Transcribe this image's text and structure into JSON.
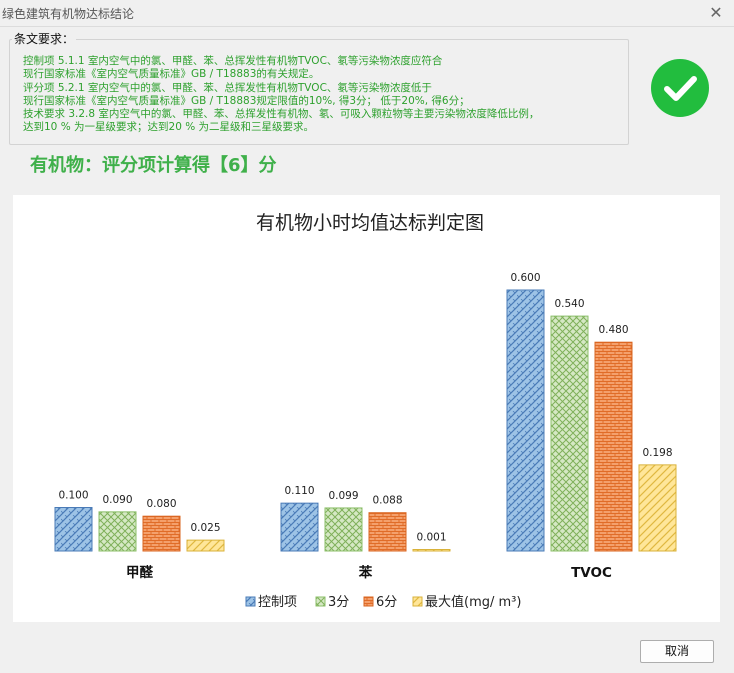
{
  "window": {
    "title": "绿色建筑有机物达标结论",
    "close_glyph": "✕"
  },
  "requirements": {
    "legend": "条文要求：",
    "lines": [
      "控制项   5.1.1 室内空气中的氯、甲醛、苯、总挥发性有机物TVOC、氡等污染物浓度应符合",
      "              现行国家标准《室内空气质量标准》GB / T18883的有关规定。",
      "评分项   5.2.1 室内空气中的氯、甲醛、苯、总挥发性有机物TVOC、氡等污染物浓度低于",
      "              现行国家标准《室内空气质量标准》GB / T18883规定限值的10%, 得3分； 低于20%, 得6分；",
      "技术要求 3.2.8 室内空气中的氯、甲醛、苯、总挥发性有机物、氡、可吸入颗粒物等主要污染物浓度降低比例，",
      "              达到10 % 为一星级要求；达到20 % 为二星级和三星级要求。"
    ]
  },
  "status": {
    "icon": "check-circle-icon",
    "color": "#22bd3e"
  },
  "headline": "有机物：评分项计算得【6】分",
  "chart_data": {
    "type": "bar",
    "title": "有机物小时均值达标判定图",
    "categories": [
      "甲醛",
      "苯",
      "TVOC"
    ],
    "series": [
      {
        "name": "控制项",
        "values": [
          0.1,
          0.11,
          0.6
        ],
        "labels": [
          "0.100",
          "0.110",
          "0.600"
        ],
        "color": "#5b9bd5"
      },
      {
        "name": "3分",
        "values": [
          0.09,
          0.099,
          0.54
        ],
        "labels": [
          "0.090",
          "0.099",
          "0.540"
        ],
        "color": "#a9d18e"
      },
      {
        "name": "6分",
        "values": [
          0.08,
          0.088,
          0.48
        ],
        "labels": [
          "0.080",
          "0.088",
          "0.480"
        ],
        "color": "#f4894b"
      },
      {
        "name": "最大值(mg/ m³)",
        "values": [
          0.025,
          0.001,
          0.198
        ],
        "labels": [
          "0.025",
          "0.001",
          "0.198"
        ],
        "color": "#ffd966"
      }
    ],
    "ylim": [
      0,
      0.6
    ],
    "grid": false,
    "legend_position": "bottom"
  },
  "footer": {
    "cancel_label": "取消"
  }
}
